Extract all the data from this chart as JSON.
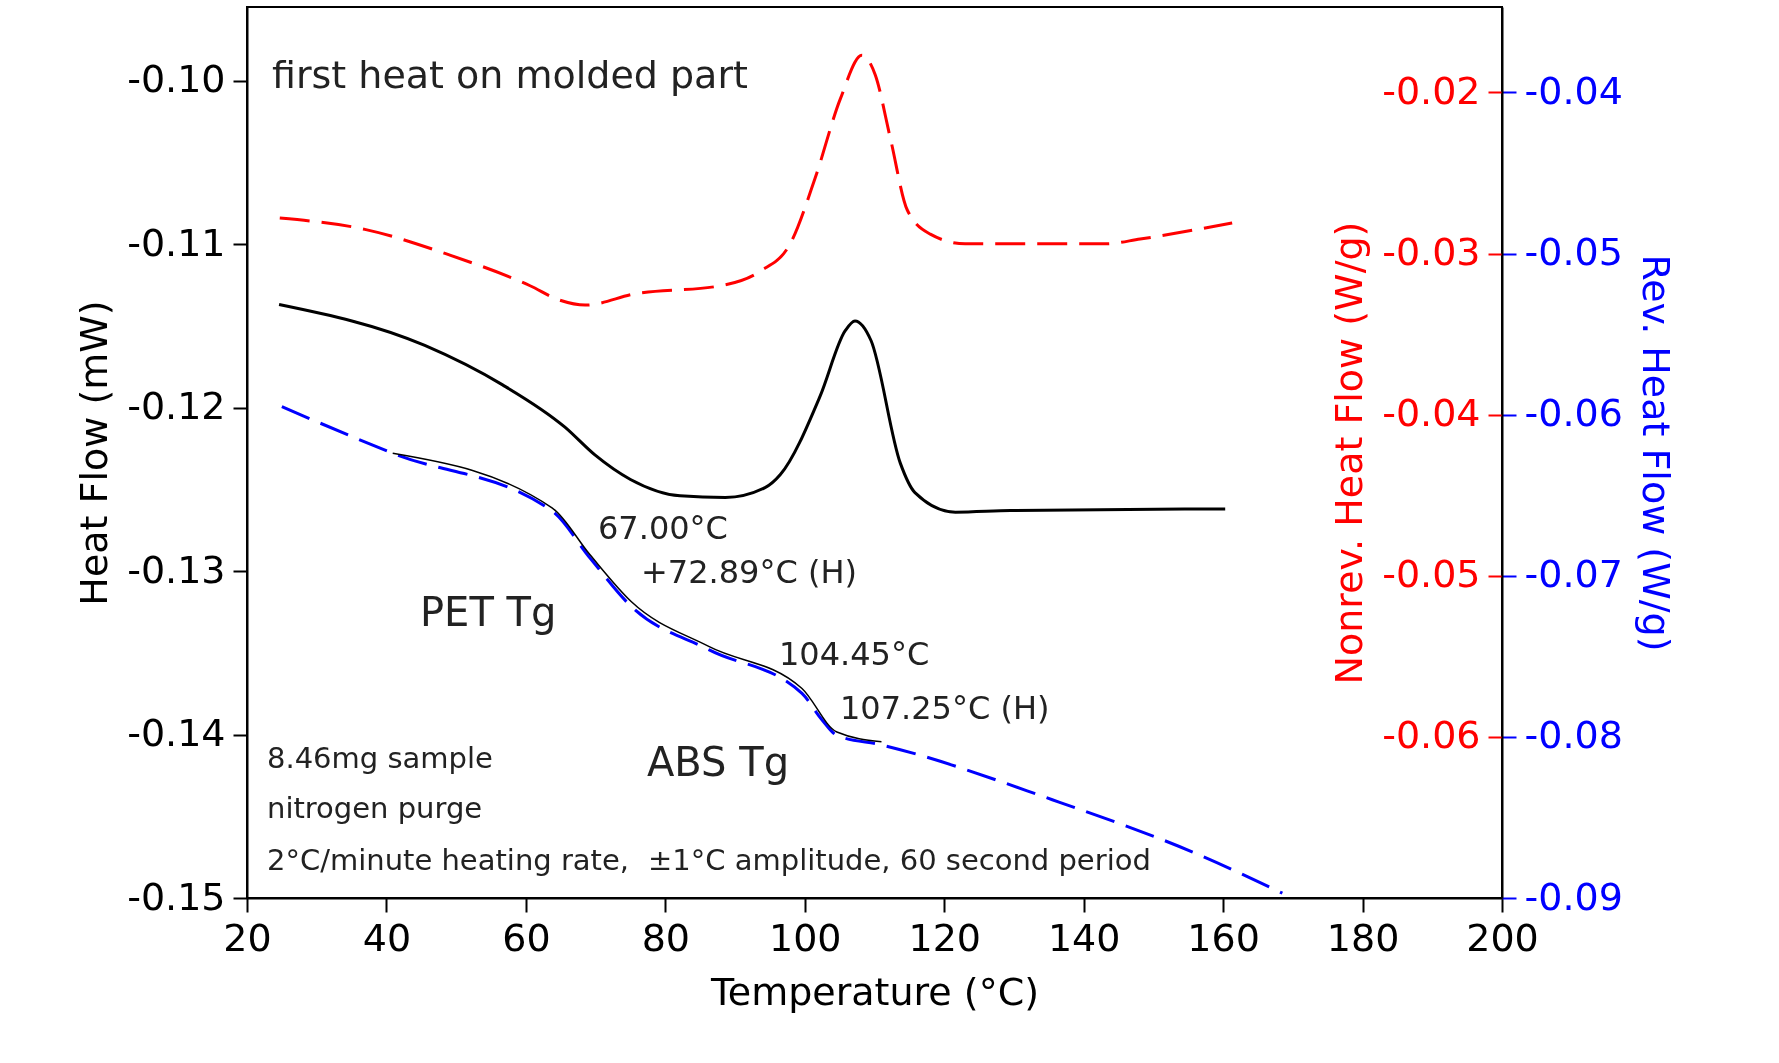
{
  "chart_data": {
    "type": "line",
    "xlabel": "Temperature (°C)",
    "ylabel": "Heat Flow (mW)",
    "y2label": "Nonrev. Heat Flow (W/g)",
    "y3label": "Rev. Heat Flow (W/g)",
    "xlim": [
      20,
      200
    ],
    "xticks": [
      20,
      40,
      60,
      80,
      100,
      120,
      140,
      160,
      180,
      200
    ],
    "ylim": [
      -0.15,
      -0.0955
    ],
    "yticks": [
      {
        "value": -0.15,
        "label": "-0.15"
      },
      {
        "value": -0.14,
        "label": "-0.14"
      },
      {
        "value": -0.13,
        "label": "-0.13"
      },
      {
        "value": -0.12,
        "label": "-0.12"
      },
      {
        "value": -0.11,
        "label": "-0.11"
      },
      {
        "value": -0.1,
        "label": "-0.10"
      }
    ],
    "y2lim": [
      -0.07,
      -0.0147
    ],
    "y2ticks": [
      {
        "value": -0.06,
        "label": "-0.06"
      },
      {
        "value": -0.05,
        "label": "-0.05"
      },
      {
        "value": -0.04,
        "label": "-0.04"
      },
      {
        "value": -0.03,
        "label": "-0.03"
      },
      {
        "value": -0.02,
        "label": "-0.02"
      }
    ],
    "y3lim": [
      -0.09,
      -0.0347
    ],
    "y3ticks": [
      {
        "value": -0.09,
        "label": "-0.09"
      },
      {
        "value": -0.08,
        "label": "-0.08"
      },
      {
        "value": -0.07,
        "label": "-0.07"
      },
      {
        "value": -0.06,
        "label": "-0.06"
      },
      {
        "value": -0.05,
        "label": "-0.05"
      },
      {
        "value": -0.04,
        "label": "-0.04"
      }
    ],
    "grid": false,
    "series": [
      {
        "axis": "y2",
        "color": "#ff0000",
        "line_style": "dashed",
        "x": [
          24.7,
          36.9,
          49.1,
          60.6,
          64.9,
          68.5,
          75.7,
          87.9,
          93.6,
          97.9,
          101.5,
          105.1,
          108.2,
          110.1,
          112.3,
          114.7,
          118,
          123,
          143.1,
          148.1,
          161.3
        ],
        "values": [
          -0.0278,
          -0.0285,
          -0.0301,
          -0.032,
          -0.0329,
          -0.0332,
          -0.0325,
          -0.032,
          -0.0311,
          -0.0294,
          -0.0253,
          -0.0204,
          -0.0177,
          -0.0189,
          -0.0229,
          -0.0273,
          -0.0288,
          -0.0294,
          -0.0294,
          -0.0291,
          -0.0281
        ]
      },
      {
        "axis": "y",
        "color": "#000000",
        "line_style": "solid",
        "x": [
          24.6,
          45.5,
          56.6,
          65.6,
          69.9,
          75,
          82.1,
          88.6,
          94.3,
          96.5,
          102.2,
          105.8,
          107.2,
          109.5,
          113.7,
          115.8,
          121.6,
          129.5,
          160.3
        ],
        "values": [
          -0.1137,
          -0.1162,
          -0.1186,
          -0.1212,
          -0.1229,
          -0.1244,
          -0.1254,
          -0.1255,
          -0.1249,
          -0.1241,
          -0.1193,
          -0.1153,
          -0.1147,
          -0.1159,
          -0.1234,
          -0.1252,
          -0.1264,
          -0.1263,
          -0.1262
        ]
      },
      {
        "axis": "y3",
        "color": "#0000ff",
        "line_style": "dashed",
        "x": [
          25,
          40.9,
          63.8,
          69.2,
          75.1,
          86.3,
          99.6,
          102.4,
          104.6,
          111,
          135.5,
          157,
          168.5
        ],
        "values": [
          -0.0595,
          -0.0624,
          -0.066,
          -0.0689,
          -0.0719,
          -0.0746,
          -0.0773,
          -0.0789,
          -0.0799,
          -0.0805,
          -0.0839,
          -0.0874,
          -0.0897
        ]
      },
      {
        "axis": "y3",
        "color": "#000000",
        "line_style": "solid",
        "x": [
          40.9,
          63.8,
          69.2,
          75.1,
          86.3,
          99.6,
          104.6,
          111
        ],
        "values": [
          -0.0624,
          -0.0658,
          -0.0687,
          -0.0716,
          -0.0744,
          -0.077,
          -0.0797,
          -0.0803
        ]
      }
    ],
    "annotations": [
      "first heat on molded part",
      "67.00°C",
      "+72.89°C (H)",
      "PET Tg",
      "104.45°C",
      "107.25°C (H)",
      "ABS Tg",
      "8.46mg sample",
      "nitrogen purge",
      "2°C/minute heating rate,",
      "±1°C amplitude, 60 second period"
    ]
  }
}
